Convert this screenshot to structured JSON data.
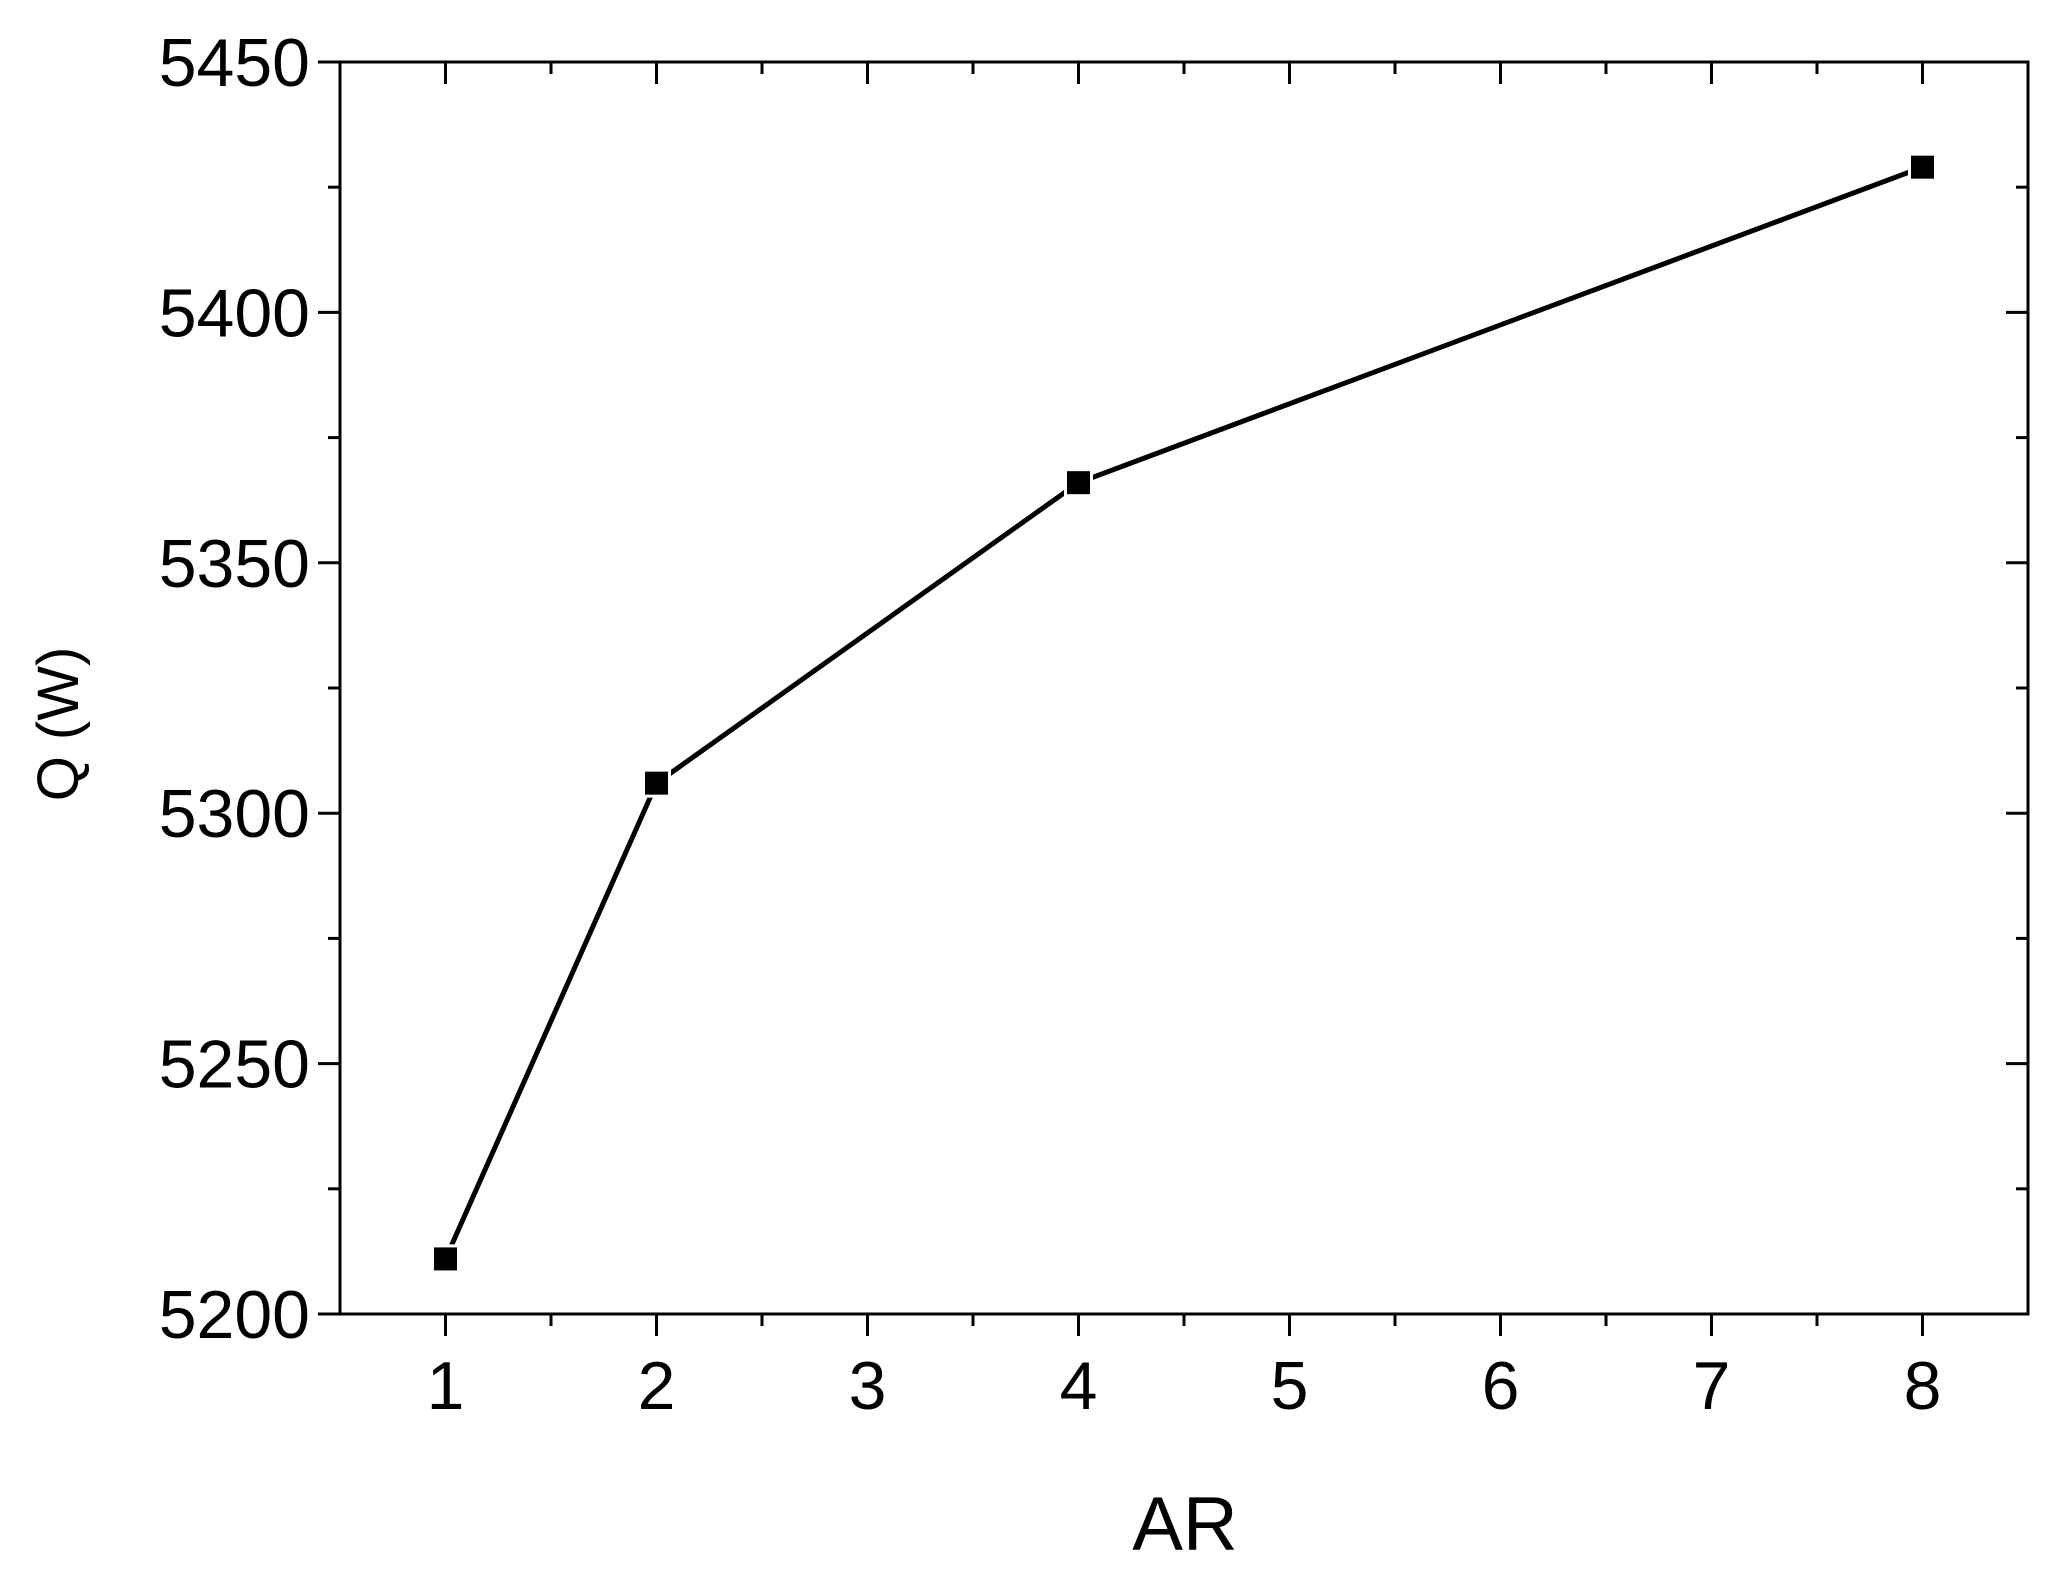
{
  "chart_data": {
    "type": "line",
    "x_label": "AR",
    "y_label": "Q (W)",
    "x": [
      1,
      2,
      4,
      8
    ],
    "series": [
      {
        "name": "Q",
        "color": "#000000",
        "marker": "square",
        "values": [
          5211,
          5306,
          5366,
          5429
        ]
      }
    ],
    "xlim": [
      0.5,
      8.5
    ],
    "xticks": [
      1,
      2,
      3,
      4,
      5,
      6,
      7,
      8
    ],
    "xminorticks": [
      1.5,
      2.5,
      3.5,
      4.5,
      5.5,
      6.5,
      7.5
    ],
    "ylim": [
      5200,
      5450
    ],
    "yticks": [
      5200,
      5250,
      5300,
      5350,
      5400,
      5450
    ],
    "yminorticks": [
      5225,
      5275,
      5325,
      5375,
      5425
    ],
    "grid": false,
    "legend": false
  }
}
